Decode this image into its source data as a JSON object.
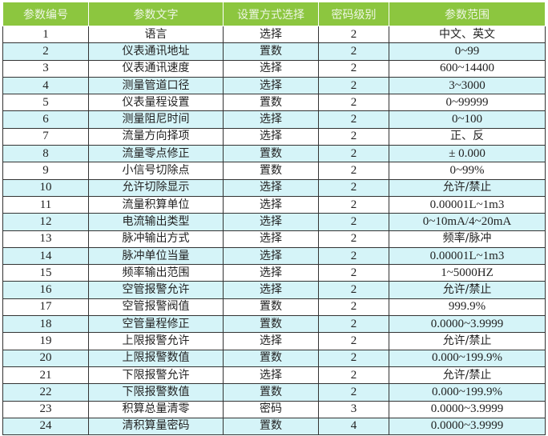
{
  "colors": {
    "header_bg": "#8cc63f",
    "alt_row_bg": "#d5f4f8"
  },
  "headers": [
    "参数编号",
    "参数文字",
    "设置方式选择",
    "密码级别",
    "参数范围"
  ],
  "rows": [
    [
      "1",
      "语言",
      "选择",
      "2",
      "中文、英文"
    ],
    [
      "2",
      "仪表通讯地址",
      "置数",
      "2",
      "0~99"
    ],
    [
      "3",
      "仪表通讯速度",
      "选择",
      "2",
      "600~14400"
    ],
    [
      "4",
      "测量管道口径",
      "选择",
      "2",
      "3~3000"
    ],
    [
      "5",
      "仪表量程设置",
      "置数",
      "2",
      "0~99999"
    ],
    [
      "6",
      "测量阻尼时间",
      "选择",
      "2",
      "0~100"
    ],
    [
      "7",
      "流量方向择项",
      "选择",
      "2",
      "正、反"
    ],
    [
      "8",
      "流量零点修正",
      "置数",
      "2",
      "± 0.000"
    ],
    [
      "9",
      "小信号切除点",
      "置数",
      "2",
      "0~99%"
    ],
    [
      "10",
      "允许切除显示",
      "选择",
      "2",
      "允许/禁止"
    ],
    [
      "11",
      "流量积算单位",
      "选择",
      "2",
      "0.00001L~1m3"
    ],
    [
      "12",
      "电流输出类型",
      "选择",
      "2",
      "0~10mA/4~20mA"
    ],
    [
      "13",
      "脉冲输出方式",
      "选择",
      "2",
      "频率/脉冲"
    ],
    [
      "14",
      "脉冲单位当量",
      "选择",
      "2",
      "0.00001L~1m3"
    ],
    [
      "15",
      "频率输出范围",
      "选择",
      "2",
      "1~5000HZ"
    ],
    [
      "16",
      "空管报警允许",
      "选择",
      "2",
      "允许/禁止"
    ],
    [
      "17",
      "空管报警阀值",
      "置数",
      "2",
      "999.9%"
    ],
    [
      "18",
      "空管量程修正",
      "置数",
      "2",
      "0.0000~3.9999"
    ],
    [
      "19",
      "上限报警允许",
      "选择",
      "2",
      "允许/禁止"
    ],
    [
      "20",
      "上限报警数值",
      "置数",
      "2",
      "0.000~199.9%"
    ],
    [
      "21",
      "下限报警允许",
      "选择",
      "2",
      "允许/禁止"
    ],
    [
      "22",
      "下限报警数值",
      "置数",
      "2",
      "0.000~199.9%"
    ],
    [
      "23",
      "积算总量清零",
      "密码",
      "3",
      "0.0000~3.9999"
    ],
    [
      "24",
      "清积算量密码",
      "置数",
      "4",
      "0.0000~3.9999"
    ]
  ]
}
